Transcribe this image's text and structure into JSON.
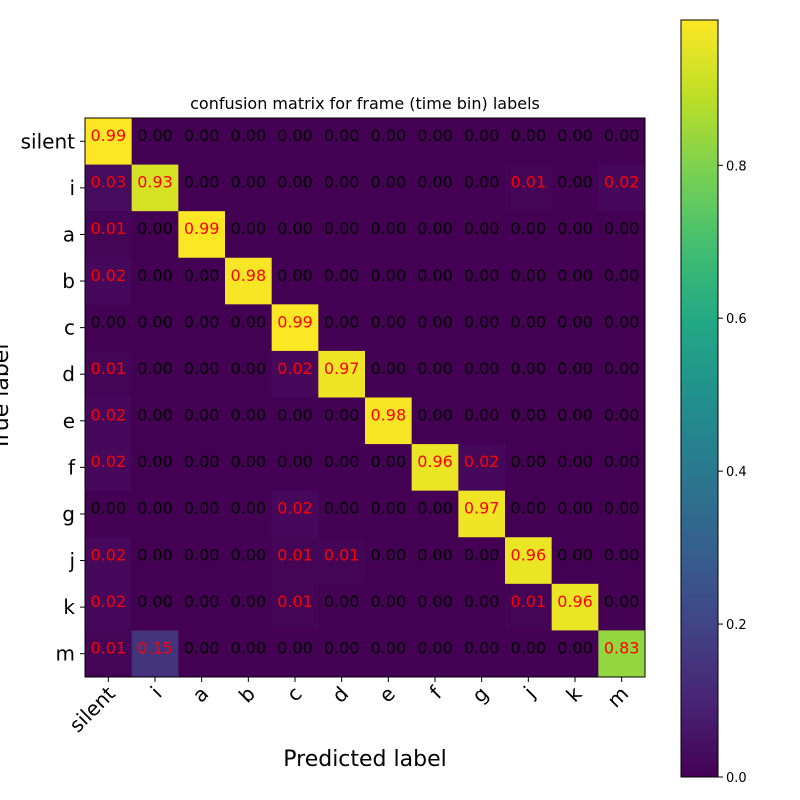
{
  "chart_data": {
    "type": "heatmap",
    "title": "confusion matrix for frame (time bin) labels",
    "xlabel": "Predicted label",
    "ylabel": "True label",
    "labels": [
      "silent",
      "i",
      "a",
      "b",
      "c",
      "d",
      "e",
      "f",
      "g",
      "j",
      "k",
      "m"
    ],
    "matrix": [
      [
        0.99,
        0.0,
        0.0,
        0.0,
        0.0,
        0.0,
        0.0,
        0.0,
        0.0,
        0.0,
        0.0,
        0.0
      ],
      [
        0.03,
        0.93,
        0.0,
        0.0,
        0.0,
        0.0,
        0.0,
        0.0,
        0.0,
        0.01,
        0.0,
        0.02
      ],
      [
        0.01,
        0.0,
        0.99,
        0.0,
        0.0,
        0.0,
        0.0,
        0.0,
        0.0,
        0.0,
        0.0,
        0.0
      ],
      [
        0.02,
        0.0,
        0.0,
        0.98,
        0.0,
        0.0,
        0.0,
        0.0,
        0.0,
        0.0,
        0.0,
        0.0
      ],
      [
        0.0,
        0.0,
        0.0,
        0.0,
        0.99,
        0.0,
        0.0,
        0.0,
        0.0,
        0.0,
        0.0,
        0.0
      ],
      [
        0.01,
        0.0,
        0.0,
        0.0,
        0.02,
        0.97,
        0.0,
        0.0,
        0.0,
        0.0,
        0.0,
        0.0
      ],
      [
        0.02,
        0.0,
        0.0,
        0.0,
        0.0,
        0.0,
        0.98,
        0.0,
        0.0,
        0.0,
        0.0,
        0.0
      ],
      [
        0.02,
        0.0,
        0.0,
        0.0,
        0.0,
        0.0,
        0.0,
        0.96,
        0.02,
        0.0,
        0.0,
        0.0
      ],
      [
        0.0,
        0.0,
        0.0,
        0.0,
        0.02,
        0.0,
        0.0,
        0.0,
        0.97,
        0.0,
        0.0,
        0.0
      ],
      [
        0.02,
        0.0,
        0.0,
        0.0,
        0.01,
        0.01,
        0.0,
        0.0,
        0.0,
        0.96,
        0.0,
        0.0
      ],
      [
        0.02,
        0.0,
        0.0,
        0.0,
        0.01,
        0.0,
        0.0,
        0.0,
        0.0,
        0.01,
        0.96,
        0.0
      ],
      [
        0.01,
        0.15,
        0.0,
        0.0,
        0.0,
        0.0,
        0.0,
        0.0,
        0.0,
        0.0,
        0.0,
        0.83
      ]
    ],
    "colormap": "viridis",
    "value_range": [
      0,
      1
    ],
    "colorbar_ticks": [
      "0.0",
      "0.2",
      "0.4",
      "0.6",
      "0.8"
    ],
    "text_color_nonzero": "#ff0000",
    "text_color_zero": "#000000",
    "grid": false
  }
}
